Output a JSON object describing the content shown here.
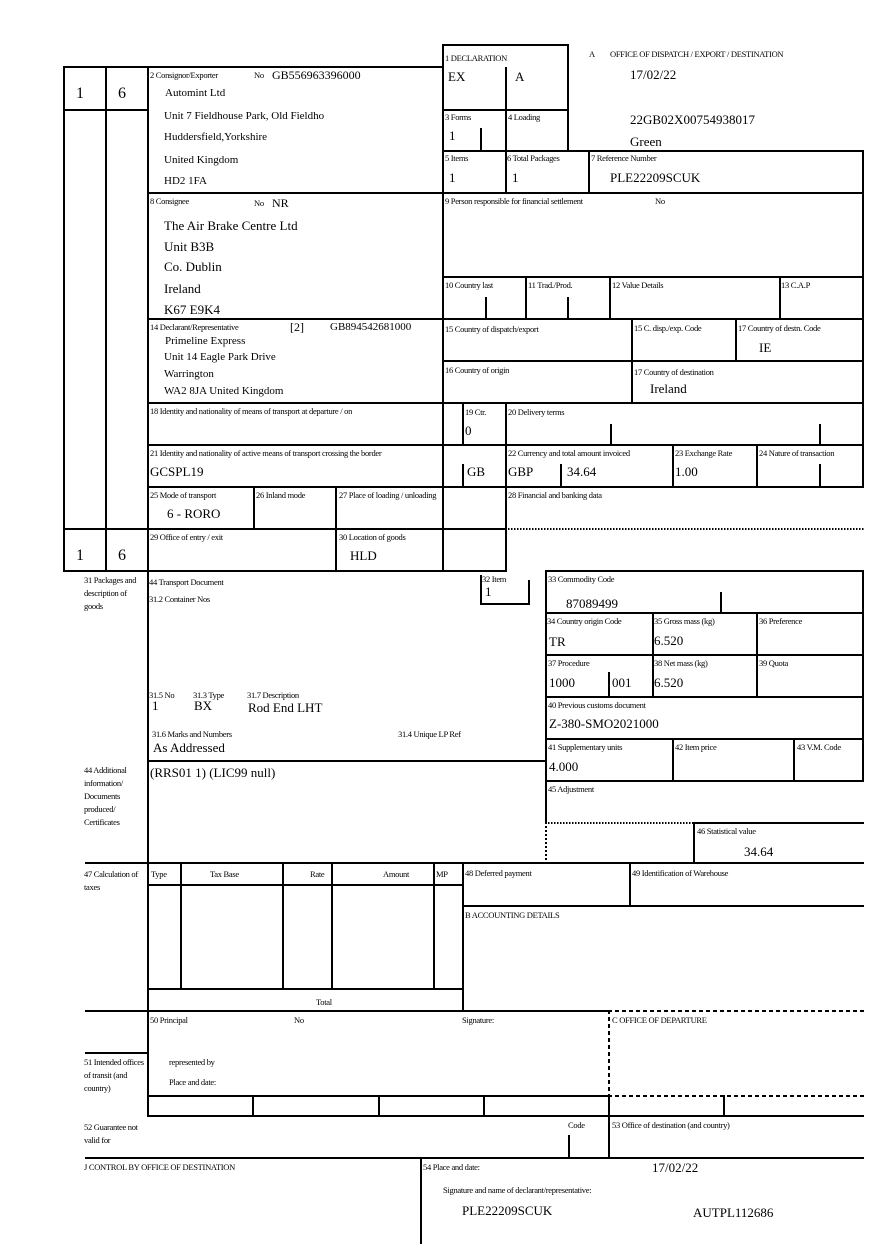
{
  "header": {
    "box_a_label": "A",
    "office_title": "OFFICE OF DISPATCH / EXPORT / DESTINATION",
    "office_date": "17/02/22",
    "mrn": "22GB02X00754938017",
    "route": "Green"
  },
  "copy_numbers": {
    "top_left": "1",
    "top_right": "6",
    "bottom_left": "1",
    "bottom_right": "6"
  },
  "declaration": {
    "label": "1 DECLARATION",
    "type": "EX",
    "subtype": "A"
  },
  "forms": {
    "label": "3 Forms",
    "value": "1"
  },
  "loading": {
    "label": "4 Loading"
  },
  "items": {
    "label": "5 Items",
    "value": "1"
  },
  "total_packages": {
    "label": "6 Total Packages",
    "value": "1"
  },
  "reference": {
    "label": "7 Reference Number",
    "value": "PLE22209SCUK"
  },
  "consignor": {
    "label": "2 Consignor/Exporter",
    "no_label": "No",
    "no": "GB556963396000",
    "lines": [
      "Automint Ltd",
      "Unit 7 Fieldhouse Park, Old Fieldho",
      "Huddersfield,Yorkshire",
      "United Kingdom",
      "HD2 1FA"
    ]
  },
  "consignee": {
    "label": "8 Consignee",
    "no_label": "No",
    "no": "NR",
    "lines": [
      "The Air Brake Centre Ltd",
      "Unit B3B",
      "Co. Dublin",
      "Ireland",
      "K67 E9K4"
    ]
  },
  "financial_person": {
    "label": "9 Person responsible for financial settlement",
    "no_label": "No"
  },
  "boxes_10_13": {
    "country_last": "10 Country last",
    "trad_prod": "11 Trad./Prod.",
    "value_details": "12 Value Details",
    "cap": "13 C.A.P"
  },
  "declarant": {
    "label": "14 Declarant/Representative",
    "code": "[2]",
    "no": "GB894542681000",
    "lines": [
      "Primeline Express",
      "Unit 14 Eagle Park Drive",
      "Warrington",
      "WA2 8JA United Kingdom"
    ]
  },
  "dispatch": {
    "label": "15 Country of dispatch/export",
    "code_label": "15 C. disp./exp. Code"
  },
  "destination_code": {
    "label": "17 Country of destn. Code",
    "value": "IE"
  },
  "origin": {
    "label": "16 Country of origin"
  },
  "destination": {
    "label": "17 Country of destination",
    "value": "Ireland"
  },
  "transport_departure": {
    "label": "18 Identity and nationality of means of transport at departure / on"
  },
  "container": {
    "label": "19 Ctr.",
    "value": "0"
  },
  "delivery_terms": {
    "label": "20 Delivery terms"
  },
  "transport_border": {
    "label": "21 Identity and nationality of active means of transport crossing the border",
    "value": "GCSPL19",
    "nationality": "GB"
  },
  "currency": {
    "label": "22 Currency and total amount invoiced",
    "currency": "GBP",
    "amount": "34.64"
  },
  "exchange_rate": {
    "label": "23 Exchange Rate",
    "value": "1.00"
  },
  "nature_transaction": {
    "label": "24 Nature of transaction"
  },
  "transport_mode": {
    "label": "25 Mode of transport",
    "value": "6 - RORO"
  },
  "inland_mode": {
    "label": "26 Inland mode"
  },
  "place_loading": {
    "label": "27 Place of loading / unloading"
  },
  "financial_data": {
    "label": "28 Financial and banking data"
  },
  "office_exit": {
    "label": "29 Office of entry / exit"
  },
  "location_goods": {
    "label": "30 Location of goods",
    "value": "HLD"
  },
  "goods": {
    "side_label": "31 Packages and description of goods",
    "transport_doc": "44 Transport Document",
    "container_nos": "31.2 Container Nos",
    "no_label": "31.5 No",
    "no_value": "1",
    "type_label": "31.3 Type",
    "type_value": "BX",
    "desc_label": "31.7 Description",
    "desc_value": "Rod End LHT",
    "marks_label": "31.6 Marks and Numbers",
    "marks_value": "As Addressed",
    "unique_ref_label": "31.4 Unique LP Ref"
  },
  "item": {
    "label": "32 Item",
    "value": "1"
  },
  "commodity": {
    "label": "33 Commodity Code",
    "value": "87089499"
  },
  "origin_code": {
    "label": "34 Country origin Code",
    "value": "TR"
  },
  "gross_mass": {
    "label": "35 Gross mass (kg)",
    "value": "6.520"
  },
  "preference": {
    "label": "36 Preference"
  },
  "procedure": {
    "label": "37 Procedure",
    "value": "1000",
    "additional": "001"
  },
  "net_mass": {
    "label": "38 Net mass (kg)",
    "value": "6.520"
  },
  "quota": {
    "label": "39 Quota"
  },
  "previous_doc": {
    "label": "40 Previous customs document",
    "value": "Z-380-SMO2021000"
  },
  "supplementary": {
    "label": "41 Supplementary units",
    "value": "4.000"
  },
  "item_price": {
    "label": "42 Item price"
  },
  "vm_code": {
    "label": "43 V.M. Code"
  },
  "additional_info": {
    "side_label": "44 Additional information/ Documents produced/ Certificates",
    "value": "(RRS01 1) (LIC99 null)"
  },
  "adjustment": {
    "label": "45 Adjustment"
  },
  "statistical": {
    "label": "46 Statistical value",
    "value": "34.64"
  },
  "taxes": {
    "side_label": "47 Calculation of taxes",
    "columns": [
      "Type",
      "Tax Base",
      "Rate",
      "Amount",
      "MP"
    ],
    "total_label": "Total"
  },
  "deferred": {
    "label": "48 Deferred payment"
  },
  "warehouse": {
    "label": "49 Identification of Warehouse"
  },
  "accounting": {
    "label": "B ACCOUNTING DETAILS"
  },
  "principal": {
    "label": "50 Principal",
    "no_label": "No",
    "signature_label": "Signature:",
    "represented_by": "represented by",
    "place_date": "Place and date:"
  },
  "office_departure": {
    "label": "C OFFICE OF DEPARTURE"
  },
  "transit_offices": {
    "side_label": "51 Intended offices of transit (and country)"
  },
  "guarantee": {
    "side_label": "52 Guarantee not valid for",
    "code_label": "Code"
  },
  "office_destination": {
    "label": "53 Office of destination (and country)"
  },
  "control": {
    "label": "J CONTROL BY OFFICE OF DESTINATION"
  },
  "place_date": {
    "label": "54 Place and date:",
    "date": "17/02/22",
    "signature_label": "Signature and name of declarant/representative:",
    "reference": "PLE22209SCUK",
    "name": "AUTPL112686"
  }
}
